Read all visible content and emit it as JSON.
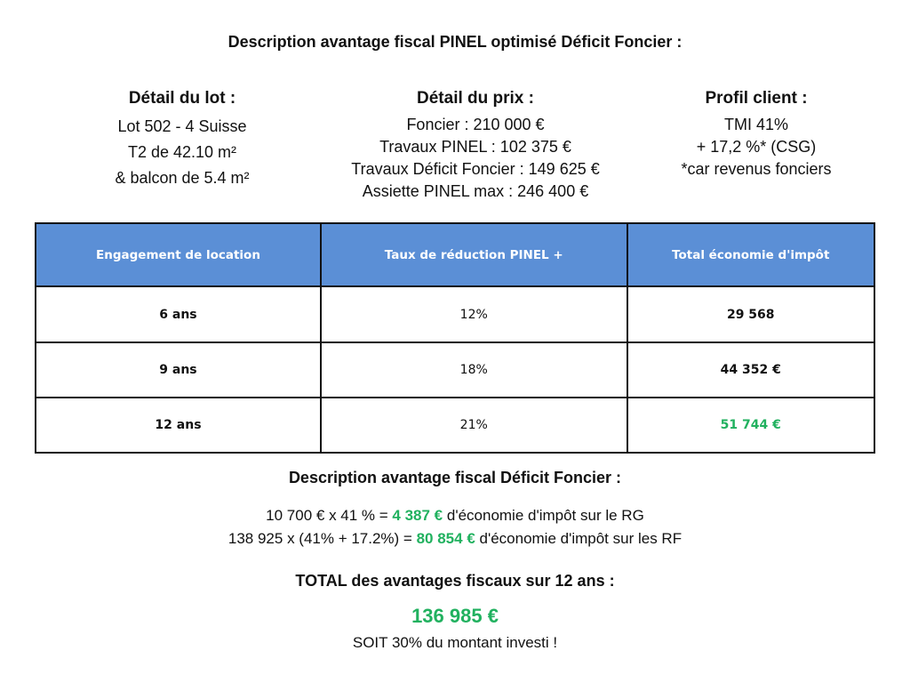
{
  "header": {
    "title": "Description avantage fiscal PINEL optimisé Déficit Foncier :"
  },
  "lot": {
    "heading": "Détail du lot :",
    "lines": [
      "Lot 502 - 4 Suisse",
      "T2 de 42.10 m²",
      "& balcon de 5.4 m²"
    ]
  },
  "prix": {
    "heading": "Détail du prix :",
    "lines": [
      "Foncier : 210 000 €",
      "Travaux PINEL : 102 375 €",
      "Travaux Déficit Foncier : 149 625 €",
      "Assiette PINEL max : 246 400 €"
    ]
  },
  "profil": {
    "heading": "Profil client :",
    "lines": [
      "TMI 41%",
      "+ 17,2 %*  (CSG)",
      "*car revenus fonciers"
    ]
  },
  "table": {
    "headers": [
      "Engagement de location",
      "Taux de réduction PINEL +",
      "Total économie d'impôt"
    ],
    "rows": [
      [
        "6 ans",
        "12%",
        "29 568"
      ],
      [
        "9 ans",
        "18%",
        "44 352 €"
      ],
      [
        "12 ans",
        "21%",
        "51 744 €"
      ]
    ]
  },
  "deficit": {
    "heading": "Description avantage fiscal Déficit Foncier :",
    "line1_pre": "10 700 € x 41 % = ",
    "line1_value": "4 387 €",
    "line1_post": " d'économie d'impôt sur le RG",
    "line2_pre": "138 925 x (41% + 17.2%) = ",
    "line2_value": "80 854 €",
    "line2_post": " d'économie d'impôt sur les RF"
  },
  "total": {
    "label": "TOTAL des avantages fiscaux sur 12 ans :",
    "value": "136 985 €",
    "note": "SOIT 30% du montant investi !"
  },
  "colors": {
    "header_blue": "#5b8fd6",
    "highlight_green": "#21b15f"
  }
}
